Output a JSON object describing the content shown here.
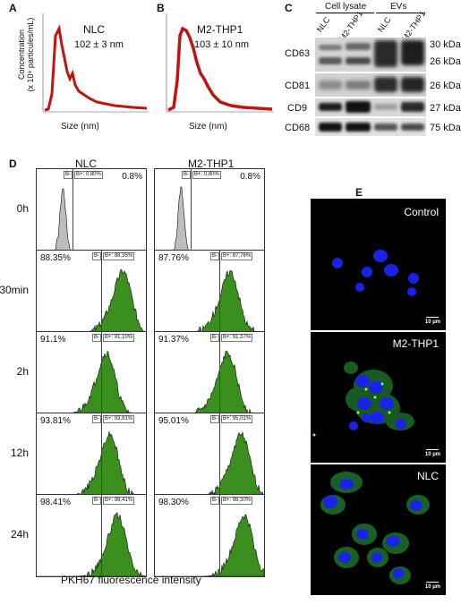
{
  "panels": {
    "A": {
      "letter": "A",
      "sample": "NLC",
      "size": "102 ± 3 nm",
      "ylabel_1": "Concentration",
      "ylabel_2": "(x 10⁹ particules/mL)",
      "xlabel": "Size (nm)"
    },
    "B": {
      "letter": "B",
      "sample": "M2-THP1",
      "size": "103 ± 10 nm",
      "xlabel": "Size (nm)"
    },
    "C": {
      "letter": "C",
      "group_cell": "Cell lysate",
      "group_ev": "EVs",
      "lanes": [
        "NLC",
        "M2-THP1",
        "NLC",
        "M2-THP1"
      ],
      "rows": [
        {
          "label": "CD63",
          "kda": [
            "30 kDa",
            "26 kDa"
          ]
        },
        {
          "label": "CD81",
          "kda": [
            "26 kDa"
          ]
        },
        {
          "label": "CD9",
          "kda": [
            "27 kDa"
          ]
        },
        {
          "label": "CD68",
          "kda": [
            "75 kDa"
          ]
        }
      ]
    },
    "D": {
      "letter": "D",
      "col_nlc": "NLC",
      "col_m2": "M2-THP1",
      "xlabel": "PKH67 fluorescence intensity",
      "gate_minus": "B-",
      "rows": [
        {
          "time": "0h",
          "nlc_pct": "0.8%",
          "nlc_gate": "B+: 0,80%",
          "m2_pct": "0.8%",
          "m2_gate": "B+: 0,80%",
          "nlc_peak": 0.24,
          "m2_peak": 0.24,
          "stained": false
        },
        {
          "time": "30min",
          "nlc_pct": "88.35%",
          "nlc_gate": "B+: 88,35%",
          "m2_pct": "87.76%",
          "m2_gate": "B+: 87,76%",
          "nlc_peak": 0.8,
          "m2_peak": 0.7,
          "stained": true
        },
        {
          "time": "2h",
          "nlc_pct": "91.1%",
          "nlc_gate": "B+: 91,10%",
          "m2_pct": "91.37%",
          "m2_gate": "B+: 91,37%",
          "nlc_peak": 0.65,
          "m2_peak": 0.68,
          "stained": true
        },
        {
          "time": "12h",
          "nlc_pct": "93.81%",
          "nlc_gate": "B+: 93,81%",
          "m2_pct": "95.01%",
          "m2_gate": "B+: 95,01%",
          "nlc_peak": 0.68,
          "m2_peak": 0.8,
          "stained": true
        },
        {
          "time": "24h",
          "nlc_pct": "98.41%",
          "nlc_gate": "B+: 98,41%",
          "m2_pct": "98.30%",
          "m2_gate": "B+: 98,30%",
          "nlc_peak": 0.75,
          "m2_peak": 0.83,
          "stained": true
        }
      ]
    },
    "E": {
      "letter": "E",
      "images": [
        {
          "label": "Control",
          "scale": "10 µm"
        },
        {
          "label": "M2-THP1",
          "scale": "10 µm"
        },
        {
          "label": "NLC",
          "scale": "10 µm"
        }
      ]
    }
  },
  "colors": {
    "nta_line": "#c0140f",
    "flow_green": "#3b8f1e",
    "flow_gray": "#bdbdbd",
    "nucleus_blue": "#1a22e8",
    "membrane_green": "#3bd13b"
  }
}
